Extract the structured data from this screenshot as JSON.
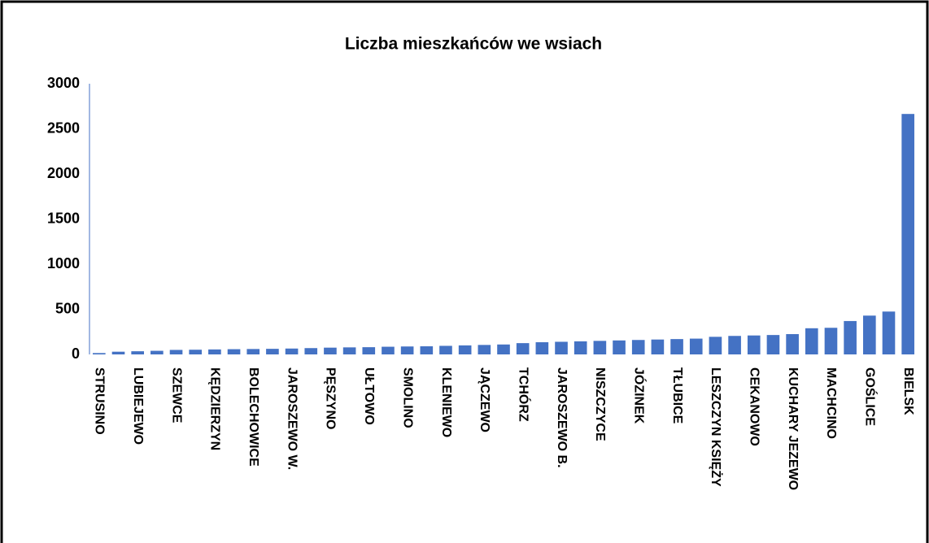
{
  "chart_data": {
    "type": "bar",
    "title": "Liczba mieszkańców we wsiach",
    "categories": [
      "STRUSINO",
      null,
      "LUBIEJEWO",
      null,
      "SZEWCE",
      null,
      "KĘDZIERZYN",
      null,
      "BOLECHOWICE",
      null,
      "JAROSZEWO W.",
      null,
      "PĘSZYNO",
      null,
      "UŁTOWO",
      null,
      "SMOLINO",
      null,
      "KLENIEWO",
      null,
      "JĄCZEWO",
      null,
      "TCHÓRZ",
      null,
      "JAROSZEWO B.",
      null,
      "NISZCZYCE",
      null,
      "JÓZINEK",
      null,
      "TŁUBICE",
      null,
      "LESZCZYN KSIĘŻY",
      null,
      "CEKANOWO",
      null,
      "KUCHARY JEZEWO",
      null,
      "MACHCINO",
      null,
      "GOŚLICE",
      null,
      "BIELSK"
    ],
    "values": [
      15,
      30,
      35,
      40,
      50,
      52,
      55,
      58,
      60,
      62,
      65,
      70,
      75,
      78,
      80,
      85,
      88,
      90,
      95,
      100,
      105,
      110,
      125,
      135,
      140,
      145,
      150,
      155,
      160,
      165,
      170,
      175,
      195,
      205,
      210,
      215,
      225,
      290,
      295,
      370,
      430,
      475,
      2665
    ],
    "color": "#4472c4",
    "ylim": [
      0,
      3000
    ],
    "yticks": [
      0,
      500,
      1000,
      1500,
      2000,
      2500,
      3000
    ],
    "grid": false
  }
}
